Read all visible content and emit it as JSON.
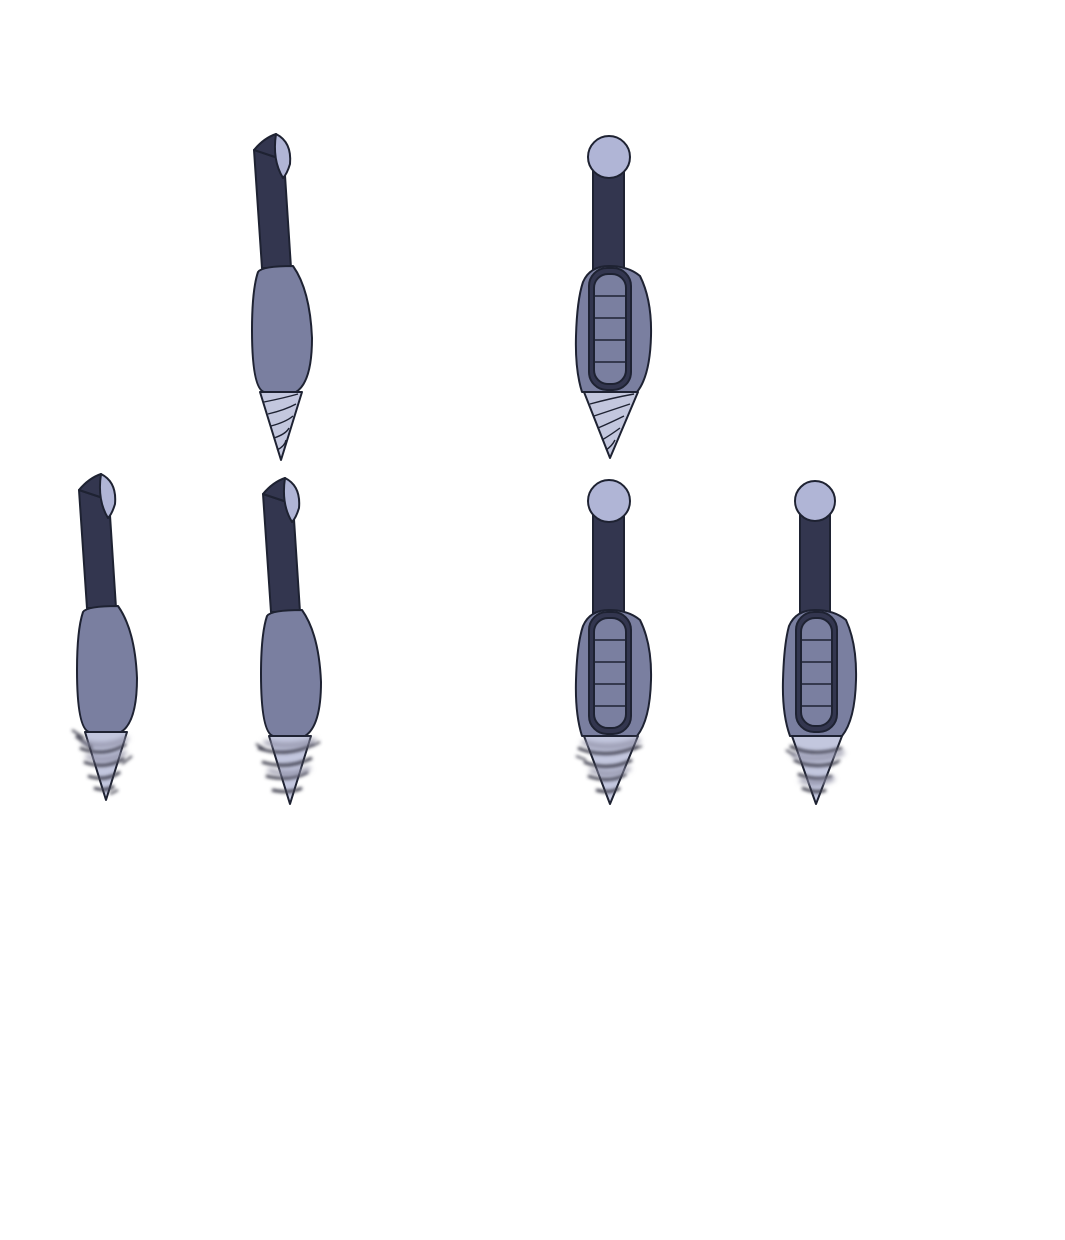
{
  "sprite_sheet": {
    "background": "#ffffff",
    "palette": {
      "handle": "#33364f",
      "body": "#7a7fa0",
      "body_light": "#8c91b1",
      "cap": "#b0b5d6",
      "bit": "#c3c7de",
      "outline": "#1e2232",
      "blur": "#3a3a4a"
    },
    "frames": [
      {
        "label": "drill-side-idle",
        "view": "side",
        "state": "idle"
      },
      {
        "label": "drill-front-idle",
        "view": "front",
        "state": "idle"
      },
      {
        "label": "drill-side-spin-1",
        "view": "side",
        "state": "spinning"
      },
      {
        "label": "drill-side-spin-2",
        "view": "side",
        "state": "spinning"
      },
      {
        "label": "drill-front-spin-1",
        "view": "front",
        "state": "spinning"
      },
      {
        "label": "drill-front-spin-2",
        "view": "front",
        "state": "spinning"
      }
    ]
  }
}
